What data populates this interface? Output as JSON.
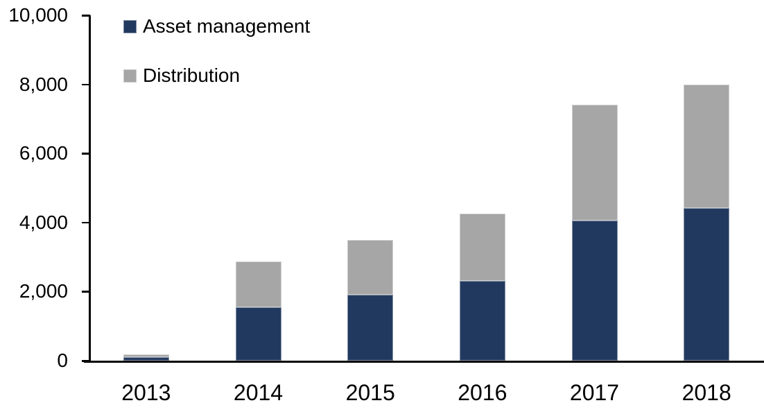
{
  "chart_data": {
    "type": "bar",
    "stacked": true,
    "title": "",
    "xlabel": "",
    "ylabel": "",
    "categories": [
      "2013",
      "2014",
      "2015",
      "2016",
      "2017",
      "2018"
    ],
    "series": [
      {
        "name": "Asset management",
        "color": "#22395f",
        "values": [
          100,
          1550,
          1900,
          2300,
          4050,
          4420
        ]
      },
      {
        "name": "Distribution",
        "color": "#a6a6a6",
        "values": [
          90,
          1330,
          1600,
          1950,
          3350,
          3580
        ]
      }
    ],
    "totals": [
      190,
      2880,
      3500,
      4250,
      7400,
      8000
    ],
    "ylim": [
      0,
      10000
    ],
    "y_ticks": [
      0,
      2000,
      4000,
      6000,
      8000,
      10000
    ],
    "y_tick_labels": [
      "0",
      "2,000",
      "4,000",
      "6,000",
      "8,000",
      "10,000"
    ],
    "legend_position": "top-left",
    "legend": [
      "Asset management",
      "Distribution"
    ],
    "grid": false,
    "axis_color": "#000000",
    "background_color": "#ffffff"
  }
}
